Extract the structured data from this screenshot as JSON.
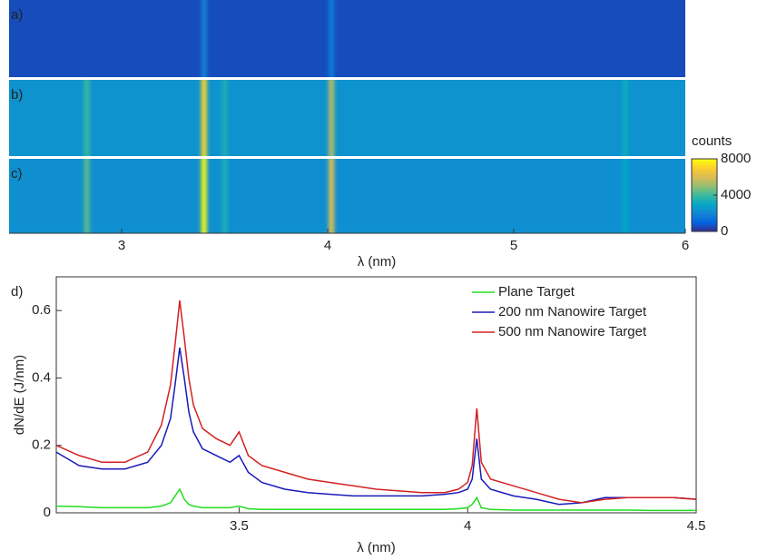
{
  "chart_data": [
    {
      "type": "heatmap",
      "xlabel": "λ (nm)",
      "xlim": [
        2.45,
        6
      ],
      "xticks": [
        3,
        4,
        5,
        6
      ],
      "colorbar_label": "counts",
      "clim": [
        0,
        8000
      ],
      "cticks": [
        0,
        4000,
        8000
      ],
      "colormap": [
        "#352a87",
        "#0363e1",
        "#1485d4",
        "#06a7c6",
        "#38b99e",
        "#92bf73",
        "#d9ba56",
        "#fcce2e",
        "#f9fb0e"
      ],
      "panels": [
        {
          "label": "a)",
          "background": 600,
          "line_x": [
            3.4,
            4.02
          ],
          "line_counts": [
            1900,
            1700
          ]
        },
        {
          "label": "b)",
          "background": 2400,
          "line_x": [
            2.83,
            3.4,
            3.5,
            4.02,
            5.65
          ],
          "line_counts": [
            4000,
            7200,
            3400,
            5600,
            3200
          ]
        },
        {
          "label": "c)",
          "background": 2300,
          "line_x": [
            2.83,
            3.4,
            3.5,
            4.02,
            5.65
          ],
          "line_counts": [
            4400,
            7900,
            3500,
            6200,
            3000
          ]
        }
      ]
    },
    {
      "type": "line",
      "panel_label": "d)",
      "xlabel": "λ (nm)",
      "ylabel": "dN/dE (J/nm)",
      "xlim": [
        3.1,
        4.5
      ],
      "xticks": [
        3.5,
        4,
        4.5
      ],
      "ylim": [
        0,
        0.7
      ],
      "yticks": [
        0,
        0.2,
        0.4,
        0.6
      ],
      "legend": "upper right",
      "x": [
        3.1,
        3.15,
        3.2,
        3.25,
        3.3,
        3.33,
        3.35,
        3.36,
        3.37,
        3.38,
        3.39,
        3.4,
        3.42,
        3.45,
        3.48,
        3.5,
        3.52,
        3.55,
        3.6,
        3.65,
        3.7,
        3.75,
        3.8,
        3.85,
        3.9,
        3.95,
        3.98,
        4.0,
        4.01,
        4.02,
        4.03,
        4.05,
        4.1,
        4.15,
        4.2,
        4.25,
        4.3,
        4.35,
        4.4,
        4.45,
        4.5
      ],
      "series": [
        {
          "name": "Plane Target",
          "color": "#22dd22",
          "values": [
            0.02,
            0.018,
            0.015,
            0.015,
            0.015,
            0.02,
            0.03,
            0.05,
            0.07,
            0.04,
            0.025,
            0.02,
            0.015,
            0.015,
            0.015,
            0.02,
            0.012,
            0.01,
            0.01,
            0.01,
            0.01,
            0.01,
            0.01,
            0.01,
            0.01,
            0.01,
            0.012,
            0.015,
            0.025,
            0.045,
            0.015,
            0.01,
            0.008,
            0.008,
            0.008,
            0.008,
            0.008,
            0.008,
            0.007,
            0.007,
            0.007
          ]
        },
        {
          "name": "200 nm Nanowire Target",
          "color": "#1a1ab8",
          "values": [
            0.18,
            0.14,
            0.13,
            0.13,
            0.15,
            0.2,
            0.28,
            0.38,
            0.49,
            0.4,
            0.3,
            0.24,
            0.19,
            0.17,
            0.15,
            0.17,
            0.12,
            0.09,
            0.07,
            0.06,
            0.055,
            0.05,
            0.05,
            0.05,
            0.05,
            0.055,
            0.06,
            0.07,
            0.1,
            0.22,
            0.1,
            0.07,
            0.05,
            0.04,
            0.025,
            0.03,
            0.045,
            0.045,
            0.045,
            0.045,
            0.04
          ]
        },
        {
          "name": "500 nm Nanowire Target",
          "color": "#d42020",
          "values": [
            0.2,
            0.17,
            0.15,
            0.15,
            0.18,
            0.26,
            0.38,
            0.5,
            0.63,
            0.52,
            0.4,
            0.32,
            0.25,
            0.22,
            0.2,
            0.24,
            0.17,
            0.14,
            0.12,
            0.1,
            0.09,
            0.08,
            0.07,
            0.065,
            0.06,
            0.06,
            0.07,
            0.09,
            0.14,
            0.31,
            0.15,
            0.1,
            0.08,
            0.06,
            0.04,
            0.03,
            0.04,
            0.045,
            0.045,
            0.045,
            0.04
          ]
        }
      ]
    }
  ]
}
